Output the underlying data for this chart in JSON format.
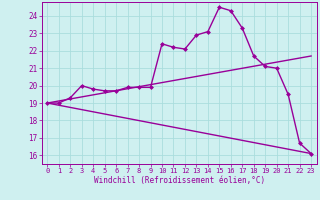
{
  "background_color": "#cff0f0",
  "grid_color": "#aadddd",
  "line_color": "#990099",
  "xlabel": "Windchill (Refroidissement éolien,°C)",
  "xlim": [
    -0.5,
    23.5
  ],
  "ylim": [
    15.5,
    24.8
  ],
  "yticks": [
    16,
    17,
    18,
    19,
    20,
    21,
    22,
    23,
    24
  ],
  "xticks": [
    0,
    1,
    2,
    3,
    4,
    5,
    6,
    7,
    8,
    9,
    10,
    11,
    12,
    13,
    14,
    15,
    16,
    17,
    18,
    19,
    20,
    21,
    22,
    23
  ],
  "curve1_x": [
    0,
    1,
    2,
    3,
    4,
    5,
    6,
    7,
    8,
    9,
    10,
    11,
    12,
    13,
    14,
    15,
    16,
    17,
    18,
    19,
    20,
    21,
    22,
    23
  ],
  "curve1_y": [
    19.0,
    19.0,
    19.3,
    20.0,
    19.8,
    19.7,
    19.7,
    19.9,
    19.9,
    19.9,
    22.4,
    22.2,
    22.1,
    22.9,
    23.1,
    24.5,
    24.3,
    23.3,
    21.7,
    21.1,
    21.0,
    19.5,
    16.7,
    16.1
  ],
  "curve2_x": [
    0,
    23
  ],
  "curve2_y": [
    19.0,
    21.7
  ],
  "curve3_x": [
    0,
    23
  ],
  "curve3_y": [
    19.0,
    16.1
  ],
  "markersize": 2.5,
  "linewidth": 1.0
}
